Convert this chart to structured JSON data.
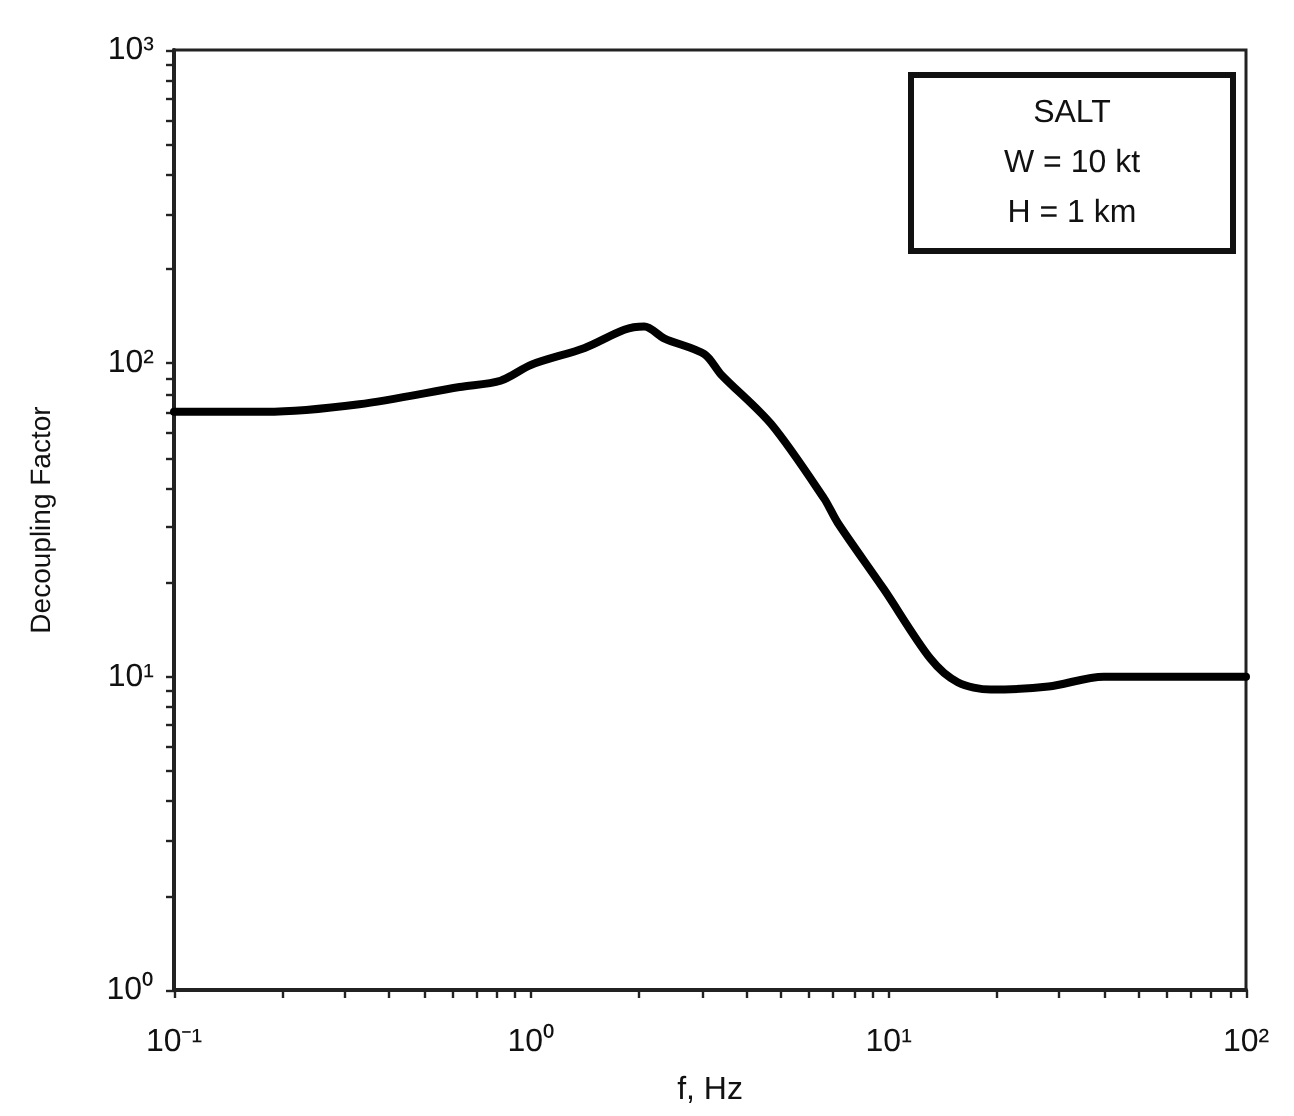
{
  "chart_data": {
    "type": "line",
    "xlabel": "f, Hz",
    "ylabel": "Decoupling Factor",
    "annotations": [
      "SALT",
      "W = 10 kt",
      "H = 1 km"
    ],
    "log": "xy",
    "x": [
      0.1,
      0.18,
      0.33,
      0.63,
      0.82,
      1.0,
      1.41,
      1.82,
      2.07,
      2.36,
      3.05,
      3.4,
      4.69,
      6.6,
      7.2,
      9.7,
      13.1,
      15.6,
      19.3,
      28,
      40,
      100
    ],
    "series": [
      {
        "color": "#000000",
        "values": [
          70,
          70,
          74,
          84,
          88,
          99,
          112,
          128,
          131,
          120,
          107,
          92,
          64,
          37,
          31,
          19,
          11.4,
          9.6,
          9.1,
          9.3,
          10,
          10
        ]
      }
    ],
    "xlim": [
      0.1,
      100
    ],
    "ylim": [
      1,
      1000
    ],
    "xticks": [
      {
        "value": 0.1,
        "label": "10⁻¹"
      },
      {
        "value": 0.2,
        "label": null
      },
      {
        "value": 0.3,
        "label": null
      },
      {
        "value": 0.4,
        "label": null
      },
      {
        "value": 0.5,
        "label": null
      },
      {
        "value": 0.6,
        "label": null
      },
      {
        "value": 0.7,
        "label": null
      },
      {
        "value": 0.8,
        "label": null
      },
      {
        "value": 0.9,
        "label": null
      },
      {
        "value": 1,
        "label": "10⁰"
      },
      {
        "value": 2,
        "label": null
      },
      {
        "value": 3,
        "label": null
      },
      {
        "value": 4,
        "label": null
      },
      {
        "value": 5,
        "label": null
      },
      {
        "value": 6,
        "label": null
      },
      {
        "value": 7,
        "label": null
      },
      {
        "value": 8,
        "label": null
      },
      {
        "value": 9,
        "label": null
      },
      {
        "value": 10,
        "label": "10¹"
      },
      {
        "value": 20,
        "label": null
      },
      {
        "value": 30,
        "label": null
      },
      {
        "value": 40,
        "label": null
      },
      {
        "value": 50,
        "label": null
      },
      {
        "value": 60,
        "label": null
      },
      {
        "value": 70,
        "label": null
      },
      {
        "value": 80,
        "label": null
      },
      {
        "value": 90,
        "label": null
      },
      {
        "value": 100,
        "label": "10²"
      }
    ],
    "yticks": [
      {
        "value": 1,
        "label": "10⁰"
      },
      {
        "value": 2,
        "label": null
      },
      {
        "value": 3,
        "label": null
      },
      {
        "value": 4,
        "label": null
      },
      {
        "value": 5,
        "label": null
      },
      {
        "value": 6,
        "label": null
      },
      {
        "value": 7,
        "label": null
      },
      {
        "value": 8,
        "label": null
      },
      {
        "value": 9,
        "label": null
      },
      {
        "value": 10,
        "label": "10¹"
      },
      {
        "value": 20,
        "label": null
      },
      {
        "value": 30,
        "label": null
      },
      {
        "value": 40,
        "label": null
      },
      {
        "value": 50,
        "label": null
      },
      {
        "value": 60,
        "label": null
      },
      {
        "value": 70,
        "label": null
      },
      {
        "value": 80,
        "label": null
      },
      {
        "value": 90,
        "label": null
      },
      {
        "value": 100,
        "label": "10²"
      },
      {
        "value": 200,
        "label": null
      },
      {
        "value": 300,
        "label": null
      },
      {
        "value": 400,
        "label": null
      },
      {
        "value": 500,
        "label": null
      },
      {
        "value": 600,
        "label": null
      },
      {
        "value": 700,
        "label": null
      },
      {
        "value": 800,
        "label": null
      },
      {
        "value": 900,
        "label": null
      },
      {
        "value": 1000,
        "label": "10³"
      }
    ],
    "grid": false,
    "marker": "none",
    "line_style": "solid"
  }
}
